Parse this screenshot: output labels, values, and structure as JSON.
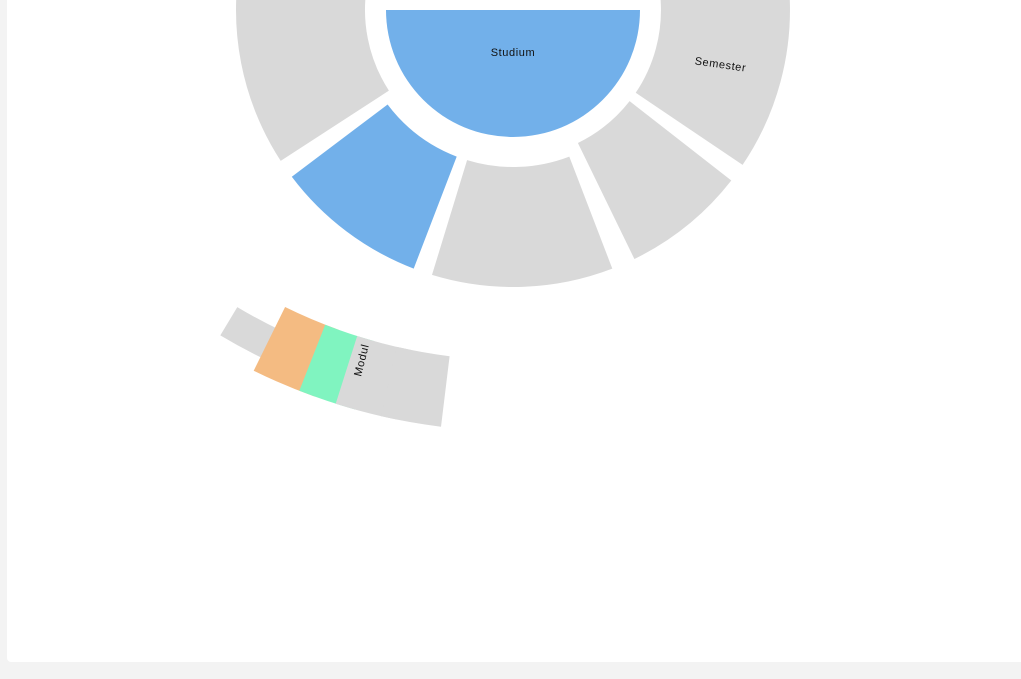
{
  "sunburst": {
    "colors": {
      "blue": "#72b0ea",
      "grey": "#d9d9d9",
      "orange": "#f4bb82",
      "green": "#80f4c0"
    },
    "rings": [
      {
        "level": "studium",
        "label": "Studium"
      },
      {
        "level": "semester",
        "label": "Semester"
      },
      {
        "level": "modul",
        "label": "Modul"
      }
    ],
    "segments": [
      {
        "id": "studium",
        "level": "studium",
        "color": "blue",
        "label": "Studium"
      },
      {
        "id": "semester-1",
        "level": "semester",
        "color": "grey",
        "label": "Semester"
      },
      {
        "id": "semester-2",
        "level": "semester",
        "color": "grey",
        "label": ""
      },
      {
        "id": "semester-3",
        "level": "semester",
        "color": "grey",
        "label": ""
      },
      {
        "id": "semester-4",
        "level": "semester",
        "color": "blue",
        "label": ""
      },
      {
        "id": "semester-5",
        "level": "semester",
        "color": "grey",
        "label": ""
      },
      {
        "id": "modul-1",
        "level": "modul",
        "color": "grey",
        "label": ""
      },
      {
        "id": "modul-2",
        "level": "modul",
        "color": "orange",
        "label": ""
      },
      {
        "id": "modul-3",
        "level": "modul",
        "color": "green",
        "label": ""
      },
      {
        "id": "modul-4",
        "level": "modul",
        "color": "grey",
        "label": "Modul"
      },
      {
        "id": "modul-5",
        "level": "modul",
        "color": "grey",
        "label": ""
      }
    ]
  }
}
